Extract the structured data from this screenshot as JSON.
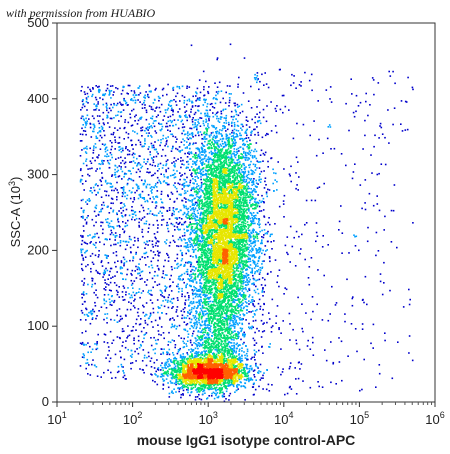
{
  "watermark": "with permission from HUABIO",
  "chart_data": {
    "type": "scatter",
    "plot": "flow-cytometry density dot plot",
    "title": "",
    "xlabel": "mouse IgG1 isotype control-APC",
    "ylabel_main": "SSC-A (10",
    "ylabel_sup": "3",
    "ylabel_end": ")",
    "xscale": "log",
    "xlim": [
      10,
      1000000
    ],
    "ylim": [
      0,
      500
    ],
    "x_ticks": [
      {
        "value": 10,
        "base": "10",
        "exp": "1"
      },
      {
        "value": 100,
        "base": "10",
        "exp": "2"
      },
      {
        "value": 1000,
        "base": "10",
        "exp": "3"
      },
      {
        "value": 10000,
        "base": "10",
        "exp": "4"
      },
      {
        "value": 100000,
        "base": "10",
        "exp": "5"
      },
      {
        "value": 1000000,
        "base": "10",
        "exp": "6"
      }
    ],
    "y_ticks": [
      0,
      100,
      200,
      300,
      400,
      500
    ],
    "grid": false,
    "color_scale": [
      "#0000cc",
      "#00a0ff",
      "#00e070",
      "#e6e600",
      "#ff6000",
      "#ff0000"
    ],
    "populations": [
      {
        "x_center": 1600,
        "y_center": 240,
        "x_spread_log": 0.22,
        "y_spread": 65,
        "peak_density": "high"
      },
      {
        "x_center": 1000,
        "y_center": 40,
        "x_spread_log": 0.25,
        "y_spread": 14,
        "peak_density": "very high"
      }
    ]
  }
}
